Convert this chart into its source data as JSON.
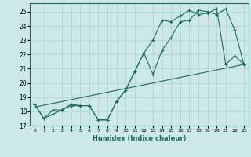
{
  "title": "",
  "xlabel": "Humidex (Indice chaleur)",
  "ylabel": "",
  "background_color": "#cce9e8",
  "grid_color": "#b5d5d4",
  "line_color": "#1a6b5e",
  "xlim": [
    -0.5,
    23.5
  ],
  "ylim": [
    17,
    25.6
  ],
  "yticks": [
    17,
    18,
    19,
    20,
    21,
    22,
    23,
    24,
    25
  ],
  "xticks": [
    0,
    1,
    2,
    3,
    4,
    5,
    6,
    7,
    8,
    9,
    10,
    11,
    12,
    13,
    14,
    15,
    16,
    17,
    18,
    19,
    20,
    21,
    22,
    23
  ],
  "series1_x": [
    0,
    1,
    2,
    3,
    4,
    5,
    6,
    7,
    8,
    9,
    10,
    11,
    12,
    13,
    14,
    15,
    16,
    17,
    18,
    19,
    20,
    21,
    22,
    23
  ],
  "series1_y": [
    18.5,
    17.5,
    17.8,
    18.1,
    18.5,
    18.4,
    18.4,
    17.4,
    17.4,
    18.7,
    19.5,
    20.8,
    22.1,
    20.6,
    22.3,
    23.2,
    24.3,
    24.4,
    25.1,
    25.0,
    24.8,
    25.2,
    23.7,
    21.3
  ],
  "series2_x": [
    0,
    1,
    2,
    3,
    4,
    5,
    6,
    7,
    8,
    9,
    10,
    11,
    12,
    13,
    14,
    15,
    16,
    17,
    18,
    19,
    20,
    21,
    22,
    23
  ],
  "series2_y": [
    18.5,
    17.5,
    18.1,
    18.1,
    18.4,
    18.4,
    18.4,
    17.4,
    17.4,
    18.7,
    19.5,
    20.8,
    22.1,
    23.0,
    24.4,
    24.3,
    24.7,
    25.1,
    24.8,
    24.9,
    25.2,
    21.3,
    21.9,
    21.3
  ],
  "trend_x": [
    0,
    23
  ],
  "trend_y": [
    18.3,
    21.3
  ]
}
